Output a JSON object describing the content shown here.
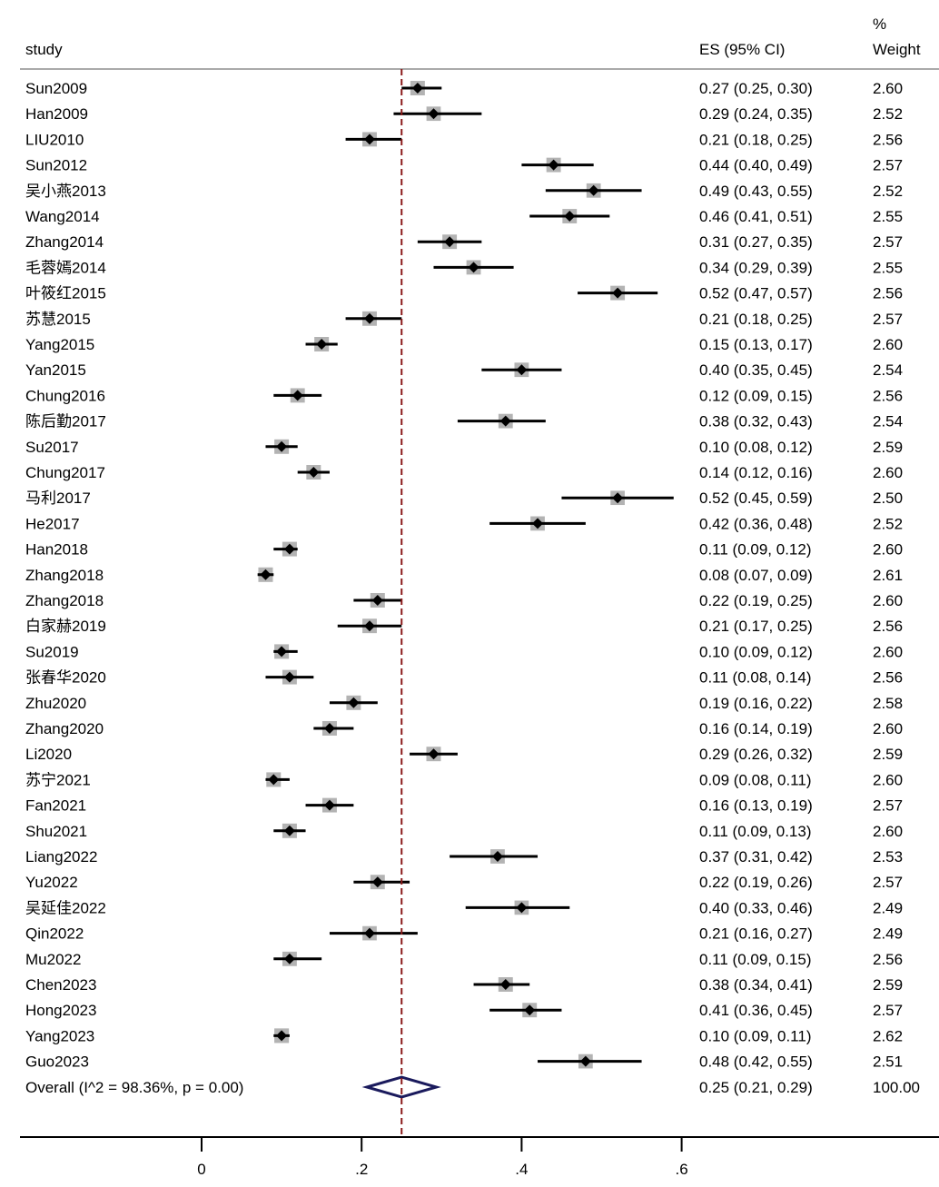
{
  "chart_data": {
    "type": "forest",
    "header": {
      "study": "study",
      "es": "ES (95% CI)",
      "weight_line1": "%",
      "weight_line2": "Weight"
    },
    "studies": [
      {
        "name": "Sun2009",
        "es": 0.27,
        "lo": 0.25,
        "hi": 0.3,
        "es_text": "0.27 (0.25, 0.30)",
        "weight": 2.6,
        "weight_text": "2.60"
      },
      {
        "name": "Han2009",
        "es": 0.29,
        "lo": 0.24,
        "hi": 0.35,
        "es_text": "0.29 (0.24, 0.35)",
        "weight": 2.52,
        "weight_text": "2.52"
      },
      {
        "name": "LIU2010",
        "es": 0.21,
        "lo": 0.18,
        "hi": 0.25,
        "es_text": "0.21 (0.18, 0.25)",
        "weight": 2.56,
        "weight_text": "2.56"
      },
      {
        "name": "Sun2012",
        "es": 0.44,
        "lo": 0.4,
        "hi": 0.49,
        "es_text": "0.44 (0.40, 0.49)",
        "weight": 2.57,
        "weight_text": "2.57"
      },
      {
        "name": "吴小燕2013",
        "es": 0.49,
        "lo": 0.43,
        "hi": 0.55,
        "es_text": "0.49 (0.43, 0.55)",
        "weight": 2.52,
        "weight_text": "2.52"
      },
      {
        "name": "Wang2014",
        "es": 0.46,
        "lo": 0.41,
        "hi": 0.51,
        "es_text": "0.46 (0.41, 0.51)",
        "weight": 2.55,
        "weight_text": "2.55"
      },
      {
        "name": "Zhang2014",
        "es": 0.31,
        "lo": 0.27,
        "hi": 0.35,
        "es_text": "0.31 (0.27, 0.35)",
        "weight": 2.57,
        "weight_text": "2.57"
      },
      {
        "name": "毛蓉嫣2014",
        "es": 0.34,
        "lo": 0.29,
        "hi": 0.39,
        "es_text": "0.34 (0.29, 0.39)",
        "weight": 2.55,
        "weight_text": "2.55"
      },
      {
        "name": "叶筱红2015",
        "es": 0.52,
        "lo": 0.47,
        "hi": 0.57,
        "es_text": "0.52 (0.47, 0.57)",
        "weight": 2.56,
        "weight_text": "2.56"
      },
      {
        "name": "苏慧2015",
        "es": 0.21,
        "lo": 0.18,
        "hi": 0.25,
        "es_text": "0.21 (0.18, 0.25)",
        "weight": 2.57,
        "weight_text": "2.57"
      },
      {
        "name": "Yang2015",
        "es": 0.15,
        "lo": 0.13,
        "hi": 0.17,
        "es_text": "0.15 (0.13, 0.17)",
        "weight": 2.6,
        "weight_text": "2.60"
      },
      {
        "name": "Yan2015",
        "es": 0.4,
        "lo": 0.35,
        "hi": 0.45,
        "es_text": "0.40 (0.35, 0.45)",
        "weight": 2.54,
        "weight_text": "2.54"
      },
      {
        "name": "Chung2016",
        "es": 0.12,
        "lo": 0.09,
        "hi": 0.15,
        "es_text": "0.12 (0.09, 0.15)",
        "weight": 2.56,
        "weight_text": "2.56"
      },
      {
        "name": "陈后勤2017",
        "es": 0.38,
        "lo": 0.32,
        "hi": 0.43,
        "es_text": "0.38 (0.32, 0.43)",
        "weight": 2.54,
        "weight_text": "2.54"
      },
      {
        "name": "Su2017",
        "es": 0.1,
        "lo": 0.08,
        "hi": 0.12,
        "es_text": "0.10 (0.08, 0.12)",
        "weight": 2.59,
        "weight_text": "2.59"
      },
      {
        "name": "Chung2017",
        "es": 0.14,
        "lo": 0.12,
        "hi": 0.16,
        "es_text": "0.14 (0.12, 0.16)",
        "weight": 2.6,
        "weight_text": "2.60"
      },
      {
        "name": "马利2017",
        "es": 0.52,
        "lo": 0.45,
        "hi": 0.59,
        "es_text": "0.52 (0.45, 0.59)",
        "weight": 2.5,
        "weight_text": "2.50"
      },
      {
        "name": "He2017",
        "es": 0.42,
        "lo": 0.36,
        "hi": 0.48,
        "es_text": "0.42 (0.36, 0.48)",
        "weight": 2.52,
        "weight_text": "2.52"
      },
      {
        "name": "Han2018",
        "es": 0.11,
        "lo": 0.09,
        "hi": 0.12,
        "es_text": "0.11 (0.09, 0.12)",
        "weight": 2.6,
        "weight_text": "2.60"
      },
      {
        "name": "Zhang2018",
        "es": 0.08,
        "lo": 0.07,
        "hi": 0.09,
        "es_text": "0.08 (0.07, 0.09)",
        "weight": 2.61,
        "weight_text": "2.61"
      },
      {
        "name": "Zhang2018",
        "es": 0.22,
        "lo": 0.19,
        "hi": 0.25,
        "es_text": "0.22 (0.19, 0.25)",
        "weight": 2.6,
        "weight_text": "2.60"
      },
      {
        "name": "白家赫2019",
        "es": 0.21,
        "lo": 0.17,
        "hi": 0.25,
        "es_text": "0.21 (0.17, 0.25)",
        "weight": 2.56,
        "weight_text": "2.56"
      },
      {
        "name": "Su2019",
        "es": 0.1,
        "lo": 0.09,
        "hi": 0.12,
        "es_text": "0.10 (0.09, 0.12)",
        "weight": 2.6,
        "weight_text": "2.60"
      },
      {
        "name": "张春华2020",
        "es": 0.11,
        "lo": 0.08,
        "hi": 0.14,
        "es_text": "0.11 (0.08, 0.14)",
        "weight": 2.56,
        "weight_text": "2.56"
      },
      {
        "name": "Zhu2020",
        "es": 0.19,
        "lo": 0.16,
        "hi": 0.22,
        "es_text": "0.19 (0.16, 0.22)",
        "weight": 2.58,
        "weight_text": "2.58"
      },
      {
        "name": "Zhang2020",
        "es": 0.16,
        "lo": 0.14,
        "hi": 0.19,
        "es_text": "0.16 (0.14, 0.19)",
        "weight": 2.6,
        "weight_text": "2.60"
      },
      {
        "name": "Li2020",
        "es": 0.29,
        "lo": 0.26,
        "hi": 0.32,
        "es_text": "0.29 (0.26, 0.32)",
        "weight": 2.59,
        "weight_text": "2.59"
      },
      {
        "name": "苏宁2021",
        "es": 0.09,
        "lo": 0.08,
        "hi": 0.11,
        "es_text": "0.09 (0.08, 0.11)",
        "weight": 2.6,
        "weight_text": "2.60"
      },
      {
        "name": "Fan2021",
        "es": 0.16,
        "lo": 0.13,
        "hi": 0.19,
        "es_text": "0.16 (0.13, 0.19)",
        "weight": 2.57,
        "weight_text": "2.57"
      },
      {
        "name": "Shu2021",
        "es": 0.11,
        "lo": 0.09,
        "hi": 0.13,
        "es_text": "0.11 (0.09, 0.13)",
        "weight": 2.6,
        "weight_text": "2.60"
      },
      {
        "name": "Liang2022",
        "es": 0.37,
        "lo": 0.31,
        "hi": 0.42,
        "es_text": "0.37 (0.31, 0.42)",
        "weight": 2.53,
        "weight_text": "2.53"
      },
      {
        "name": "Yu2022",
        "es": 0.22,
        "lo": 0.19,
        "hi": 0.26,
        "es_text": "0.22 (0.19, 0.26)",
        "weight": 2.57,
        "weight_text": "2.57"
      },
      {
        "name": "吴延佳2022",
        "es": 0.4,
        "lo": 0.33,
        "hi": 0.46,
        "es_text": "0.40 (0.33, 0.46)",
        "weight": 2.49,
        "weight_text": "2.49"
      },
      {
        "name": "Qin2022",
        "es": 0.21,
        "lo": 0.16,
        "hi": 0.27,
        "es_text": "0.21 (0.16, 0.27)",
        "weight": 2.49,
        "weight_text": "2.49"
      },
      {
        "name": "Mu2022",
        "es": 0.11,
        "lo": 0.09,
        "hi": 0.15,
        "es_text": "0.11 (0.09, 0.15)",
        "weight": 2.56,
        "weight_text": "2.56"
      },
      {
        "name": "Chen2023",
        "es": 0.38,
        "lo": 0.34,
        "hi": 0.41,
        "es_text": "0.38 (0.34, 0.41)",
        "weight": 2.59,
        "weight_text": "2.59"
      },
      {
        "name": "Hong2023",
        "es": 0.41,
        "lo": 0.36,
        "hi": 0.45,
        "es_text": "0.41 (0.36, 0.45)",
        "weight": 2.57,
        "weight_text": "2.57"
      },
      {
        "name": "Yang2023",
        "es": 0.1,
        "lo": 0.09,
        "hi": 0.11,
        "es_text": "0.10 (0.09, 0.11)",
        "weight": 2.62,
        "weight_text": "2.62"
      },
      {
        "name": "Guo2023",
        "es": 0.48,
        "lo": 0.42,
        "hi": 0.55,
        "es_text": "0.48 (0.42, 0.55)",
        "weight": 2.51,
        "weight_text": "2.51"
      }
    ],
    "overall": {
      "label": "Overall  (I^2 = 98.36%, p = 0.00)",
      "es": 0.25,
      "lo": 0.21,
      "hi": 0.29,
      "es_text": "0.25 (0.21, 0.29)",
      "weight_text": "100.00"
    },
    "x_ticks": [
      {
        "value": 0,
        "label": "0"
      },
      {
        "value": 0.2,
        "label": ".2"
      },
      {
        "value": 0.4,
        "label": ".4"
      },
      {
        "value": 0.6,
        "label": ".6"
      }
    ],
    "reference_line": 0.25,
    "colors": {
      "ci_line": "#000000",
      "marker": "#000000",
      "weight_box": "#b3b3b3",
      "reference_line": "#8b1a1a",
      "diamond": "#1a1a5c",
      "rule": "#aaaaaa"
    }
  }
}
